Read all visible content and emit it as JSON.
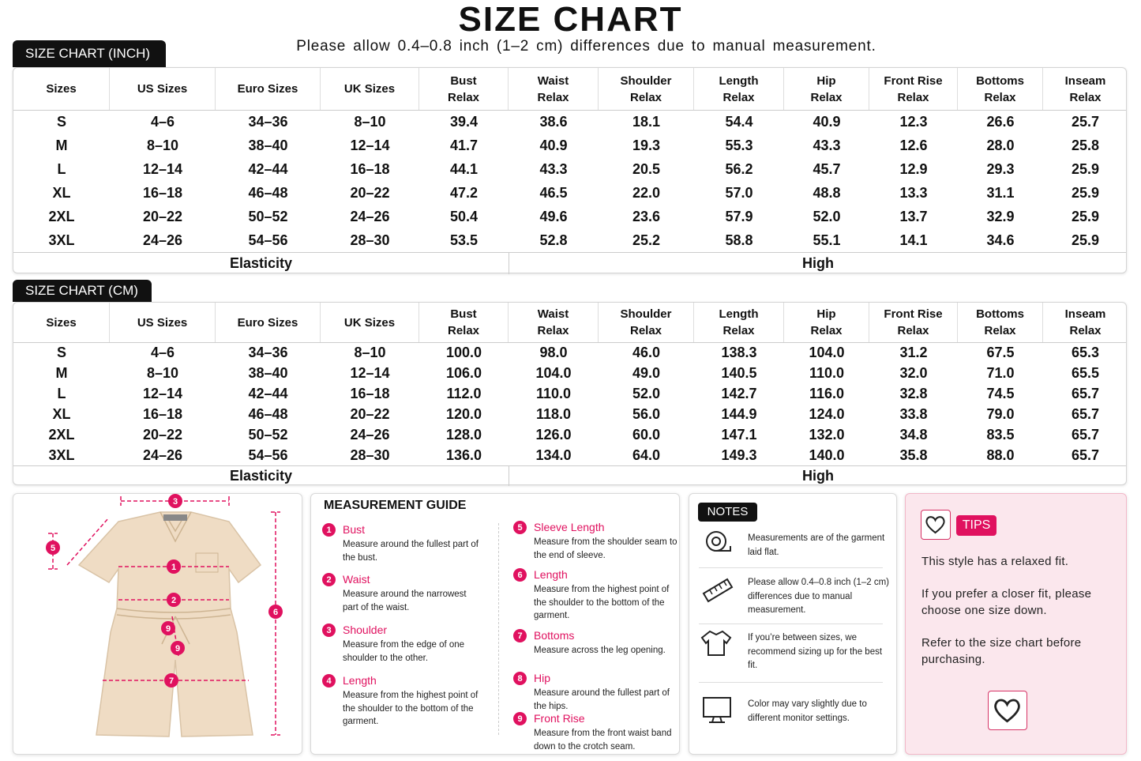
{
  "title": "SIZE CHART",
  "subtitle": "Please allow 0.4–0.8 inch (1–2 cm) differences due to manual measurement.",
  "tables": [
    {
      "label": "SIZE CHART (INCH)",
      "headers": [
        [
          "Sizes"
        ],
        [
          "US Sizes"
        ],
        [
          "Euro Sizes"
        ],
        [
          "UK Sizes"
        ],
        [
          "Bust",
          "Relax"
        ],
        [
          "Waist",
          "Relax"
        ],
        [
          "Shoulder",
          "Relax"
        ],
        [
          "Length",
          "Relax"
        ],
        [
          "Hip",
          "Relax"
        ],
        [
          "Front Rise",
          "Relax"
        ],
        [
          "Bottoms",
          "Relax"
        ],
        [
          "Inseam",
          "Relax"
        ]
      ],
      "rows": [
        [
          "S",
          "4–6",
          "34–36",
          "8–10",
          "39.4",
          "38.6",
          "18.1",
          "54.4",
          "40.9",
          "12.3",
          "26.6",
          "25.7"
        ],
        [
          "M",
          "8–10",
          "38–40",
          "12–14",
          "41.7",
          "40.9",
          "19.3",
          "55.3",
          "43.3",
          "12.6",
          "28.0",
          "25.8"
        ],
        [
          "L",
          "12–14",
          "42–44",
          "16–18",
          "44.1",
          "43.3",
          "20.5",
          "56.2",
          "45.7",
          "12.9",
          "29.3",
          "25.9"
        ],
        [
          "XL",
          "16–18",
          "46–48",
          "20–22",
          "47.2",
          "46.5",
          "22.0",
          "57.0",
          "48.8",
          "13.3",
          "31.1",
          "25.9"
        ],
        [
          "2XL",
          "20–22",
          "50–52",
          "24–26",
          "50.4",
          "49.6",
          "23.6",
          "57.9",
          "52.0",
          "13.7",
          "32.9",
          "25.9"
        ],
        [
          "3XL",
          "24–26",
          "54–56",
          "28–30",
          "53.5",
          "52.8",
          "25.2",
          "58.8",
          "55.1",
          "14.1",
          "34.6",
          "25.9"
        ]
      ],
      "footer": [
        "Elasticity",
        "High"
      ]
    },
    {
      "label": "SIZE CHART (CM)",
      "headers": [
        [
          "Sizes"
        ],
        [
          "US Sizes"
        ],
        [
          "Euro Sizes"
        ],
        [
          "UK Sizes"
        ],
        [
          "Bust",
          "Relax"
        ],
        [
          "Waist",
          "Relax"
        ],
        [
          "Shoulder",
          "Relax"
        ],
        [
          "Length",
          "Relax"
        ],
        [
          "Hip",
          "Relax"
        ],
        [
          "Front Rise",
          "Relax"
        ],
        [
          "Bottoms",
          "Relax"
        ],
        [
          "Inseam",
          "Relax"
        ]
      ],
      "rows": [
        [
          "S",
          "4–6",
          "34–36",
          "8–10",
          "100.0",
          "98.0",
          "46.0",
          "138.3",
          "104.0",
          "31.2",
          "67.5",
          "65.3"
        ],
        [
          "M",
          "8–10",
          "38–40",
          "12–14",
          "106.0",
          "104.0",
          "49.0",
          "140.5",
          "110.0",
          "32.0",
          "71.0",
          "65.5"
        ],
        [
          "L",
          "12–14",
          "42–44",
          "16–18",
          "112.0",
          "110.0",
          "52.0",
          "142.7",
          "116.0",
          "32.8",
          "74.5",
          "65.7"
        ],
        [
          "XL",
          "16–18",
          "46–48",
          "20–22",
          "120.0",
          "118.0",
          "56.0",
          "144.9",
          "124.0",
          "33.8",
          "79.0",
          "65.7"
        ],
        [
          "2XL",
          "20–22",
          "50–52",
          "24–26",
          "128.0",
          "126.0",
          "60.0",
          "147.1",
          "132.0",
          "34.8",
          "83.5",
          "65.7"
        ],
        [
          "3XL",
          "24–26",
          "54–56",
          "28–30",
          "136.0",
          "134.0",
          "64.0",
          "149.3",
          "140.0",
          "35.8",
          "88.0",
          "65.7"
        ]
      ],
      "footer": [
        "Elasticity",
        "High"
      ]
    }
  ],
  "diagram": {
    "markers": [
      "3",
      "5",
      "1",
      "2",
      "9",
      "9",
      "7",
      "6"
    ]
  },
  "guide": {
    "title": "MEASUREMENT GUIDE",
    "items": [
      {
        "num": "1",
        "name": "Bust",
        "desc": "Measure around the fullest part of the bust."
      },
      {
        "num": "2",
        "name": "Waist",
        "desc": "Measure around the narrowest part of the waist."
      },
      {
        "num": "3",
        "name": "Shoulder",
        "desc": "Measure from the edge of one shoulder to the other."
      },
      {
        "num": "4",
        "name": "Length",
        "desc": "Measure from the highest point of the shoulder to the bottom of the garment."
      },
      {
        "num": "5",
        "name": "Sleeve Length",
        "desc": "Measure from the shoulder seam to the end of sleeve."
      },
      {
        "num": "6",
        "name": "Length",
        "desc": "Measure from the highest point of the shoulder to the bottom of the garment."
      },
      {
        "num": "7",
        "name": "Bottoms",
        "desc": "Measure across the leg opening."
      },
      {
        "num": "8",
        "name": "Hip",
        "desc": "Measure around the fullest part of the hips."
      },
      {
        "num": "9",
        "name": "Front Rise",
        "desc": "Measure from the front waist band down to the crotch seam."
      }
    ]
  },
  "notes": {
    "title": "NOTES",
    "items": [
      "Measurements are of the garment laid flat.",
      "Please allow 0.4–0.8 inch (1–2 cm) differences due to manual measurement.",
      "If you’re between sizes, we recommend sizing up for the best fit.",
      "Color may vary slightly due to different monitor settings."
    ]
  },
  "tips": {
    "title": "TIPS",
    "items": [
      "This style has a relaxed fit.",
      "If you prefer a closer fit, please choose one size down.",
      "Refer to the size chart before purchasing."
    ]
  }
}
